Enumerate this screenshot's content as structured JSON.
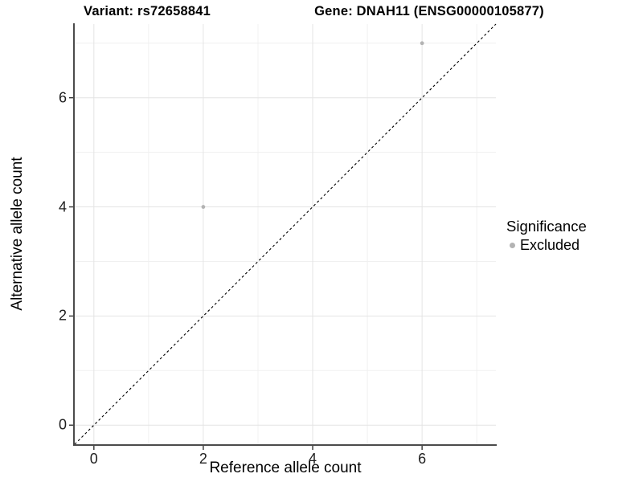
{
  "chart_data": {
    "type": "scatter",
    "title_left": "Variant: rs72658841",
    "title_right": "Gene: DNAH11 (ENSG00000105877)",
    "xlabel": "Reference allele count",
    "ylabel": "Alternative allele count",
    "xlim": [
      -0.35,
      7.35
    ],
    "ylim": [
      -0.35,
      7.35
    ],
    "x_ticks": [
      0,
      2,
      4,
      6
    ],
    "y_ticks": [
      0,
      2,
      4,
      6
    ],
    "x_minor_ticks": [
      1,
      3,
      5,
      7
    ],
    "y_minor_ticks": [
      1,
      3,
      5,
      7
    ],
    "grid": "major and minor, light gray on white",
    "series": [
      {
        "name": "Excluded",
        "color": "#b3b3b3",
        "points": [
          {
            "x": 2,
            "y": 4
          },
          {
            "x": 6,
            "y": 7
          }
        ]
      }
    ],
    "reference_line": {
      "type": "identity y=x",
      "style": "dashed",
      "color": "#000000"
    },
    "legend": {
      "title": "Significance",
      "position": "right",
      "entries": [
        {
          "label": "Excluded",
          "color": "#b3b3b3"
        }
      ]
    }
  },
  "colors": {
    "background": "#ffffff",
    "grid_major": "#e4e4e4",
    "grid_minor": "#f0f0f0",
    "axis_line": "#4b4b4b",
    "tick_mark": "#333333",
    "point": "#b3b3b3",
    "dashed_line": "#000000"
  }
}
